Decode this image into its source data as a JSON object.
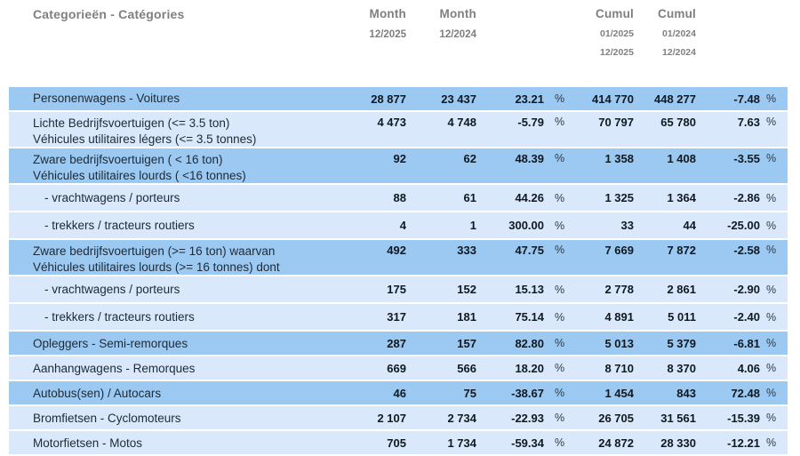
{
  "header": {
    "category_label": "Categorieën - Catégories",
    "month_current": {
      "title": "Month",
      "period": "12/2025"
    },
    "month_previous": {
      "title": "Month",
      "period": "12/2024"
    },
    "cumul_current": {
      "title": "Cumul",
      "period_start": "01/2025",
      "period_end": "12/2025"
    },
    "cumul_previous": {
      "title": "Cumul",
      "period_start": "01/2024",
      "period_end": "12/2024"
    },
    "percent_symbol": "%"
  },
  "table": {
    "rows": [
      {
        "label_line1": "Personenwagens - Voitures",
        "label_line2": "",
        "indent": false,
        "shade": "dark",
        "month_current": "28 877",
        "month_previous": "23 437",
        "month_change": "23.21",
        "cumul_current": "414 770",
        "cumul_previous": "448 277",
        "cumul_change": "-7.48"
      },
      {
        "label_line1": "Lichte Bedrijfsvoertuigen (<= 3.5 ton)",
        "label_line2": "Véhicules utilitaires légers (<= 3.5 tonnes)",
        "indent": false,
        "shade": "light",
        "month_current": "4 473",
        "month_previous": "4 748",
        "month_change": "-5.79",
        "cumul_current": "70 797",
        "cumul_previous": "65 780",
        "cumul_change": "7.63"
      },
      {
        "label_line1": "Zware bedrijfsvoertuigen ( < 16 ton)",
        "label_line2": "Véhicules utilitaires lourds ( <16 tonnes)",
        "indent": false,
        "shade": "dark",
        "month_current": "92",
        "month_previous": "62",
        "month_change": "48.39",
        "cumul_current": "1 358",
        "cumul_previous": "1 408",
        "cumul_change": "-3.55"
      },
      {
        "label_line1": "- vrachtwagens / porteurs",
        "label_line2": "",
        "indent": true,
        "shade": "light",
        "month_current": "88",
        "month_previous": "61",
        "month_change": "44.26",
        "cumul_current": "1 325",
        "cumul_previous": "1 364",
        "cumul_change": "-2.86"
      },
      {
        "label_line1": "- trekkers / tracteurs routiers",
        "label_line2": "",
        "indent": true,
        "shade": "light",
        "month_current": "4",
        "month_previous": "1",
        "month_change": "300.00",
        "cumul_current": "33",
        "cumul_previous": "44",
        "cumul_change": "-25.00"
      },
      {
        "label_line1": "Zware bedrijfsvoertuigen (>= 16 ton) waarvan",
        "label_line2": "Véhicules utilitaires lourds (>= 16 tonnes) dont",
        "indent": false,
        "shade": "dark",
        "month_current": "492",
        "month_previous": "333",
        "month_change": "47.75",
        "cumul_current": "7 669",
        "cumul_previous": "7 872",
        "cumul_change": "-2.58"
      },
      {
        "label_line1": "- vrachtwagens / porteurs",
        "label_line2": "",
        "indent": true,
        "shade": "light",
        "month_current": "175",
        "month_previous": "152",
        "month_change": "15.13",
        "cumul_current": "2 778",
        "cumul_previous": "2 861",
        "cumul_change": "-2.90"
      },
      {
        "label_line1": "- trekkers / tracteurs routiers",
        "label_line2": "",
        "indent": true,
        "shade": "light",
        "month_current": "317",
        "month_previous": "181",
        "month_change": "75.14",
        "cumul_current": "4 891",
        "cumul_previous": "5 011",
        "cumul_change": "-2.40"
      },
      {
        "label_line1": "Opleggers - Semi-remorques",
        "label_line2": "",
        "indent": false,
        "shade": "dark",
        "month_current": "287",
        "month_previous": "157",
        "month_change": "82.80",
        "cumul_current": "5 013",
        "cumul_previous": "5 379",
        "cumul_change": "-6.81"
      },
      {
        "label_line1": "Aanhangwagens - Remorques",
        "label_line2": "",
        "indent": false,
        "shade": "light",
        "month_current": "669",
        "month_previous": "566",
        "month_change": "18.20",
        "cumul_current": "8 710",
        "cumul_previous": "8 370",
        "cumul_change": "4.06"
      },
      {
        "label_line1": "Autobus(sen) / Autocars",
        "label_line2": "",
        "indent": false,
        "shade": "dark",
        "month_current": "46",
        "month_previous": "75",
        "month_change": "-38.67",
        "cumul_current": "1 454",
        "cumul_previous": "843",
        "cumul_change": "72.48"
      },
      {
        "label_line1": "Bromfietsen - Cyclomoteurs",
        "label_line2": "",
        "indent": false,
        "shade": "light",
        "month_current": "2 107",
        "month_previous": "2 734",
        "month_change": "-22.93",
        "cumul_current": "26 705",
        "cumul_previous": "31 561",
        "cumul_change": "-15.39"
      },
      {
        "label_line1": "Motorfietsen - Motos",
        "label_line2": "",
        "indent": false,
        "shade": "light",
        "month_current": "705",
        "month_previous": "1 734",
        "month_change": "-59.34",
        "cumul_current": "24 872",
        "cumul_previous": "28 330",
        "cumul_change": "-12.21"
      }
    ]
  },
  "colors": {
    "row_dark": "#9cc9f2",
    "row_light": "#d9e9fb",
    "header_text": "#7f7f7f",
    "label_text": "#1c2a36",
    "number_text": "#101820",
    "percent_text": "#333a40"
  }
}
